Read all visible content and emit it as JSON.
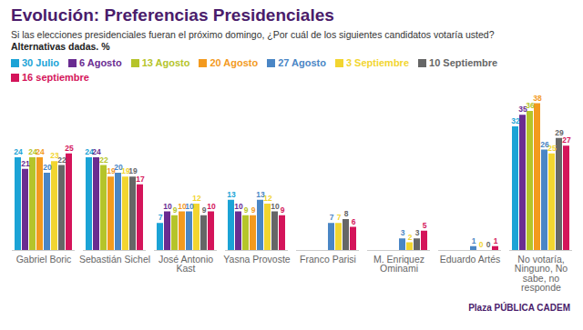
{
  "chart_data": {
    "type": "bar",
    "title": "Evolución: Preferencias Presidenciales",
    "subtitle": "Si las elecciones presidenciales fueran el próximo domingo, ¿Por cuál de los siguientes candidatos votaría usted?",
    "note": "Alternativas dadas. %",
    "source": "Plaza PÚBLICA CADEM",
    "categories": [
      "Gabriel Boric",
      "Sebastián Sichel",
      "José Antonio Kast",
      "Yasna Provoste",
      "Franco Parisi",
      "M. Enriquez Ominami",
      "Eduardo Artés",
      "No votaría, Ninguno, No sabe, no responde"
    ],
    "series": [
      {
        "name": "30 Julio",
        "color": "#1ba3d6",
        "values": [
          24,
          24,
          7,
          13,
          null,
          null,
          null,
          32
        ]
      },
      {
        "name": "6 Agosto",
        "color": "#6a2c91",
        "values": [
          21,
          24,
          10,
          10,
          null,
          null,
          null,
          35
        ]
      },
      {
        "name": "13 Agosto",
        "color": "#b5c42a",
        "values": [
          24,
          22,
          9,
          9,
          null,
          null,
          null,
          36
        ]
      },
      {
        "name": "20 Agosto",
        "color": "#f39a1e",
        "values": [
          24,
          19,
          10,
          9,
          null,
          null,
          null,
          38
        ]
      },
      {
        "name": "27 Agosto",
        "color": "#4a86c5",
        "values": [
          20,
          20,
          10,
          13,
          7,
          3,
          1,
          26
        ]
      },
      {
        "name": "3 Septiembre",
        "color": "#f2d530",
        "values": [
          23,
          19,
          12,
          12,
          7,
          2,
          0,
          25
        ]
      },
      {
        "name": "10 Septiembre",
        "color": "#666666",
        "values": [
          22,
          19,
          9,
          10,
          8,
          3,
          0,
          29
        ]
      },
      {
        "name": "16 septiembre",
        "color": "#d4145a",
        "values": [
          25,
          17,
          10,
          9,
          6,
          5,
          1,
          27
        ]
      }
    ],
    "ylim": [
      0,
      40
    ],
    "data_labels": true,
    "tick_labels": "x",
    "legend": "top"
  }
}
